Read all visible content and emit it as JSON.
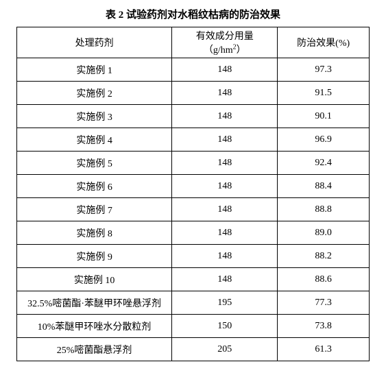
{
  "caption": "表 2 试验药剂对水稻纹枯病的防治效果",
  "table": {
    "columns": [
      {
        "label": "处理药剂"
      },
      {
        "label_prefix": "有效成分用量（",
        "unit_base": "g/hm",
        "unit_sup": "2",
        "label_suffix": "）"
      },
      {
        "label": "防治效果(%)"
      }
    ],
    "rows": [
      {
        "c1": "实施例 1",
        "c2": "148",
        "c3": "97.3"
      },
      {
        "c1": "实施例 2",
        "c2": "148",
        "c3": "91.5"
      },
      {
        "c1": "实施例 3",
        "c2": "148",
        "c3": "90.1"
      },
      {
        "c1": "实施例 4",
        "c2": "148",
        "c3": "96.9"
      },
      {
        "c1": "实施例 5",
        "c2": "148",
        "c3": "92.4"
      },
      {
        "c1": "实施例 6",
        "c2": "148",
        "c3": "88.4"
      },
      {
        "c1": "实施例 7",
        "c2": "148",
        "c3": "88.8"
      },
      {
        "c1": "实施例 8",
        "c2": "148",
        "c3": "89.0"
      },
      {
        "c1": "实施例 9",
        "c2": "148",
        "c3": "88.2"
      },
      {
        "c1": "实施例 10",
        "c2": "148",
        "c3": "88.6"
      },
      {
        "c1": "32.5%嘧菌酯·苯醚甲环唑悬浮剂",
        "c2": "195",
        "c3": "77.3"
      },
      {
        "c1": "10%苯醚甲环唑水分散粒剂",
        "c2": "150",
        "c3": "73.8"
      },
      {
        "c1": "25%嘧菌酯悬浮剂",
        "c2": "205",
        "c3": "61.3"
      }
    ]
  }
}
